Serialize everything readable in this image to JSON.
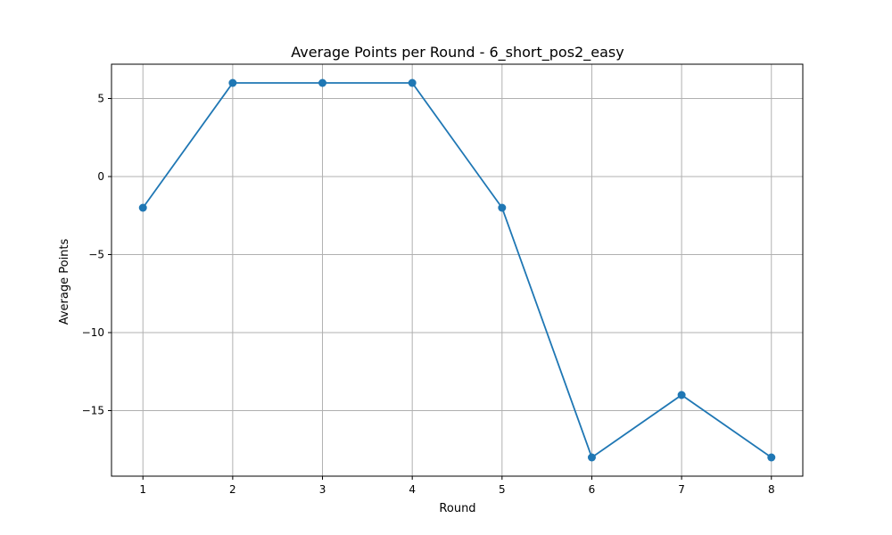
{
  "chart_data": {
    "type": "line",
    "title": "Average Points per Round - 6_short_pos2_easy",
    "xlabel": "Round",
    "ylabel": "Average Points",
    "x": [
      1,
      2,
      3,
      4,
      5,
      6,
      7,
      8
    ],
    "series": [
      {
        "values": [
          -2,
          6,
          6,
          6,
          -2,
          -18,
          -14,
          -18
        ]
      }
    ],
    "xticks": [
      "1",
      "2",
      "3",
      "4",
      "5",
      "6",
      "7",
      "8"
    ],
    "yticks": [
      5,
      0,
      -5,
      -10,
      -15
    ],
    "ytick_labels": [
      "5",
      "0",
      "−5",
      "−10",
      "−15"
    ],
    "xlim": [
      0.65,
      8.35
    ],
    "ylim": [
      -19.2,
      7.2
    ],
    "grid": true,
    "line_color": "#1f77b4",
    "grid_color": "#b0b0b0"
  }
}
